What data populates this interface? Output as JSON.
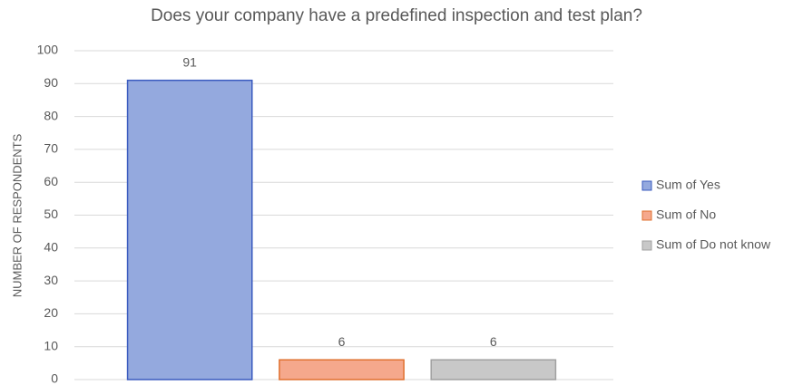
{
  "chart_data": {
    "type": "bar",
    "title": "Does your company have a predefined  inspection and test plan?",
    "y_label": "NUMBER OF RESPONDENTS",
    "series": [
      {
        "name": "Sum of Yes",
        "color": "#94a9de",
        "stroke": "#3a5bbf",
        "values": [
          91
        ]
      },
      {
        "name": "Sum of No",
        "color": "#f5a88c",
        "stroke": "#e0702f",
        "values": [
          6
        ]
      },
      {
        "name": "Sum of Do not know",
        "color": "#c8c8c8",
        "stroke": "#a0a0a0",
        "values": [
          6
        ]
      }
    ],
    "ylim": [
      0,
      100
    ],
    "yticks": [
      0,
      10,
      20,
      30,
      40,
      50,
      60,
      70,
      80,
      90,
      100
    ],
    "grid": true,
    "legend": "right",
    "data_labels": true
  }
}
